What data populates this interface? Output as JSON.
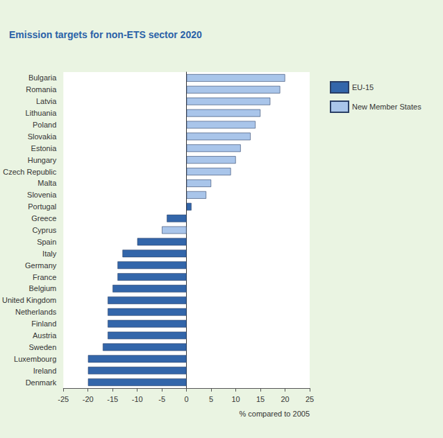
{
  "chart_data": {
    "type": "bar",
    "orientation": "horizontal",
    "title": "Emission targets for non-ETS sector 2020",
    "x_label": "% compared to 2005",
    "categories": [
      "Bulgaria",
      "Romania",
      "Latvia",
      "Lithuania",
      "Poland",
      "Slovakia",
      "Estonia",
      "Hungary",
      "Czech Republic",
      "Malta",
      "Slovenia",
      "Portugal",
      "Greece",
      "Cyprus",
      "Spain",
      "Italy",
      "Germany",
      "France",
      "Belgium",
      "United Kingdom",
      "Netherlands",
      "Finland",
      "Austria",
      "Sweden",
      "Luxembourg",
      "Ireland",
      "Denmark"
    ],
    "series": [
      {
        "name": "EU-15",
        "color": "#3366aa",
        "values": [
          null,
          null,
          null,
          null,
          null,
          null,
          null,
          null,
          null,
          null,
          null,
          1,
          -4,
          null,
          -10,
          -13,
          -14,
          -14,
          -15,
          -16,
          -16,
          -16,
          -16,
          -17,
          -20,
          -20,
          -20
        ]
      },
      {
        "name": "New Member States",
        "color": "#a9c5ea",
        "values": [
          20,
          19,
          17,
          15,
          14,
          13,
          11,
          10,
          9,
          5,
          4,
          null,
          null,
          -5,
          null,
          null,
          null,
          null,
          null,
          null,
          null,
          null,
          null,
          null,
          null,
          null,
          null
        ]
      }
    ],
    "xlim": [
      -25,
      25
    ],
    "xticks": [
      -25,
      -20,
      -15,
      -10,
      -5,
      0,
      5,
      10,
      15,
      20,
      25
    ],
    "grid": false,
    "legend": "right"
  }
}
